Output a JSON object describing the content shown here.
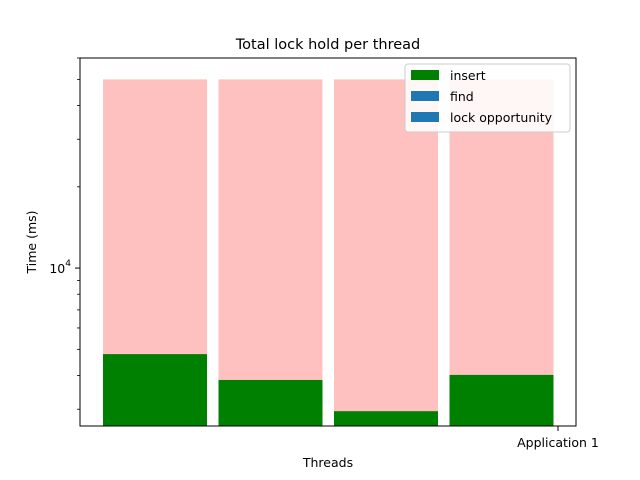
{
  "chart_data": {
    "type": "bar",
    "title": "Total lock hold per thread",
    "xlabel": "Threads",
    "ylabel": "Time (ms)",
    "yscale": "log",
    "ylim": [
      2600,
      60000
    ],
    "y_ticks": [
      {
        "value": 10000,
        "base": "10",
        "exp": "4"
      }
    ],
    "x_ticks": [
      {
        "label": "Application 1"
      }
    ],
    "grid": false,
    "legend_position": "top-right",
    "series": [
      {
        "name": "insert",
        "color": "#008000",
        "values": [
          4800,
          3850,
          2950,
          4020
        ]
      },
      {
        "name": "find",
        "color": "#1f77b4",
        "values": [
          0,
          0,
          0,
          0
        ]
      },
      {
        "name": "lock opportunity",
        "color": "#1f77b4",
        "values": [
          0,
          0,
          0,
          0
        ]
      }
    ],
    "background_bars": {
      "color": "#ffc0c0",
      "values": [
        50000,
        50000,
        50000,
        50000
      ]
    },
    "bar_count": 4
  }
}
